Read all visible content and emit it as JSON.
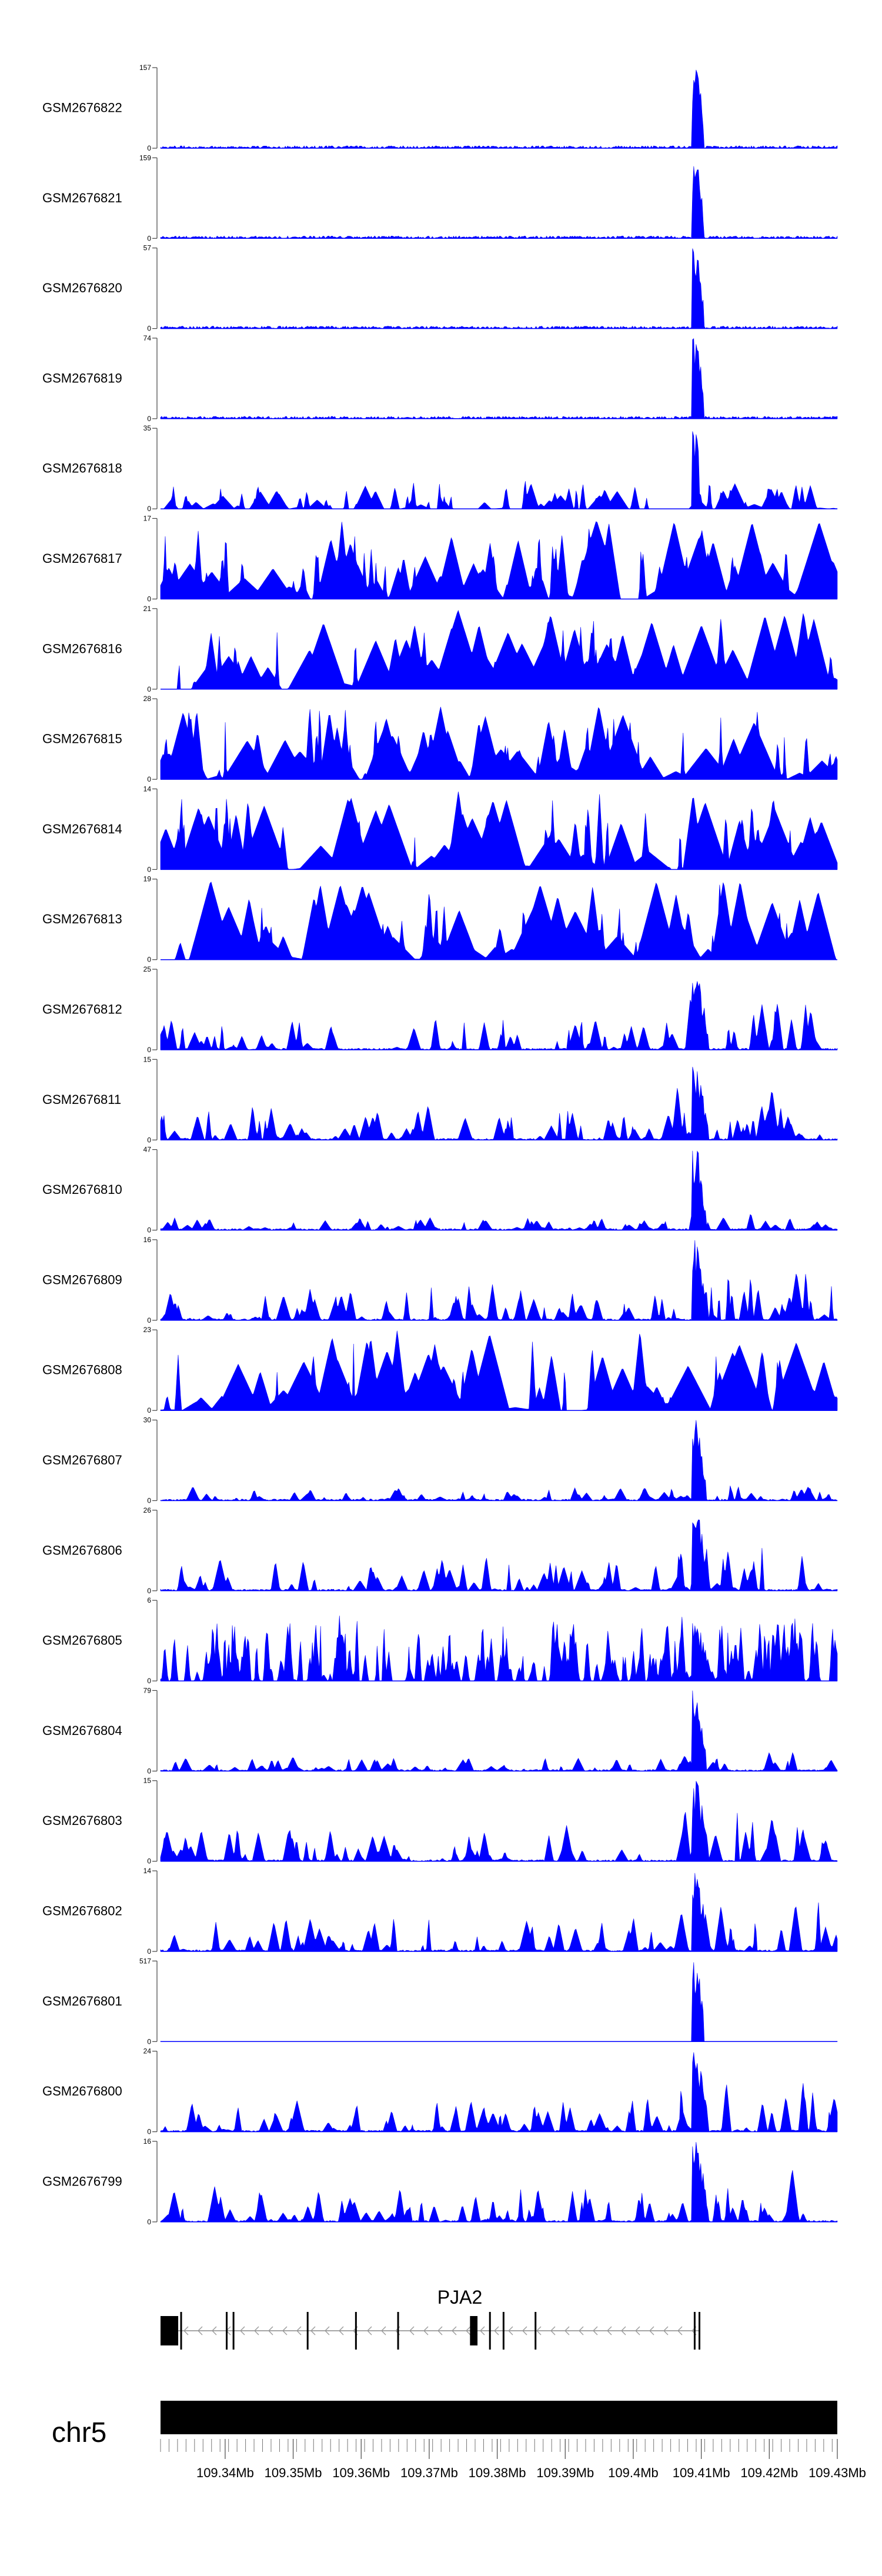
{
  "chart_data": {
    "type": "area",
    "title": "",
    "color": "#0000ff",
    "genome": {
      "chromosome": "chr5",
      "xlim": [
        109.3305,
        109.43
      ],
      "x_ticks": [
        {
          "value": 109.34,
          "label": "109.34Mb"
        },
        {
          "value": 109.35,
          "label": "109.35Mb"
        },
        {
          "value": 109.36,
          "label": "109.36Mb"
        },
        {
          "value": 109.37,
          "label": "109.37Mb"
        },
        {
          "value": 109.38,
          "label": "109.38Mb"
        },
        {
          "value": 109.39,
          "label": "109.39Mb"
        },
        {
          "value": 109.4,
          "label": "109.4Mb"
        },
        {
          "value": 109.41,
          "label": "109.41Mb"
        },
        {
          "value": 109.42,
          "label": "109.42Mb"
        },
        {
          "value": 109.43,
          "label": "109.43Mb"
        }
      ],
      "peak_position": 109.4092
    },
    "tracks": [
      {
        "name": "GSM2676822",
        "ymin": "0",
        "ymax": "157",
        "profile": "peak",
        "peak_height": 1.0
      },
      {
        "name": "GSM2676821",
        "ymin": "0",
        "ymax": "159",
        "profile": "peak",
        "peak_height": 1.0
      },
      {
        "name": "GSM2676820",
        "ymin": "0",
        "ymax": "57",
        "profile": "peak",
        "peak_height": 1.0
      },
      {
        "name": "GSM2676819",
        "ymin": "0",
        "ymax": "74",
        "profile": "peak",
        "peak_height": 1.0
      },
      {
        "name": "GSM2676818",
        "ymin": "0",
        "ymax": "35",
        "profile": "sparse_peak",
        "peak_height": 1.0
      },
      {
        "name": "GSM2676817",
        "ymin": "0",
        "ymax": "17",
        "profile": "sparse",
        "peak_height": 0.4
      },
      {
        "name": "GSM2676816",
        "ymin": "0",
        "ymax": "21",
        "profile": "sparse",
        "peak_height": 0.4
      },
      {
        "name": "GSM2676815",
        "ymin": "0",
        "ymax": "28",
        "profile": "sparse",
        "peak_height": 0.4
      },
      {
        "name": "GSM2676814",
        "ymin": "0",
        "ymax": "14",
        "profile": "sparse",
        "peak_height": 0.4
      },
      {
        "name": "GSM2676813",
        "ymin": "0",
        "ymax": "19",
        "profile": "sparse",
        "peak_height": 0.4
      },
      {
        "name": "GSM2676812",
        "ymin": "0",
        "ymax": "25",
        "profile": "medium",
        "peak_height": 1.0
      },
      {
        "name": "GSM2676811",
        "ymin": "0",
        "ymax": "15",
        "profile": "medium",
        "peak_height": 1.0
      },
      {
        "name": "GSM2676810",
        "ymin": "0",
        "ymax": "47",
        "profile": "low_peak",
        "peak_height": 1.0
      },
      {
        "name": "GSM2676809",
        "ymin": "0",
        "ymax": "16",
        "profile": "medium",
        "peak_height": 1.0
      },
      {
        "name": "GSM2676808",
        "ymin": "0",
        "ymax": "23",
        "profile": "sparse",
        "peak_height": 0.5
      },
      {
        "name": "GSM2676807",
        "ymin": "0",
        "ymax": "30",
        "profile": "low_peak",
        "peak_height": 1.0
      },
      {
        "name": "GSM2676806",
        "ymin": "0",
        "ymax": "26",
        "profile": "medium",
        "peak_height": 1.0
      },
      {
        "name": "GSM2676805",
        "ymin": "0",
        "ymax": "6",
        "profile": "noisy",
        "peak_height": 0.85
      },
      {
        "name": "GSM2676804",
        "ymin": "0",
        "ymax": "79",
        "profile": "low_peak",
        "peak_height": 1.0
      },
      {
        "name": "GSM2676803",
        "ymin": "0",
        "ymax": "15",
        "profile": "medium",
        "peak_height": 1.0
      },
      {
        "name": "GSM2676802",
        "ymin": "0",
        "ymax": "14",
        "profile": "medium",
        "peak_height": 1.0
      },
      {
        "name": "GSM2676801",
        "ymin": "0",
        "ymax": "517",
        "profile": "flat_peak",
        "peak_height": 1.0
      },
      {
        "name": "GSM2676800",
        "ymin": "0",
        "ymax": "24",
        "profile": "medium",
        "peak_height": 1.0
      },
      {
        "name": "GSM2676799",
        "ymin": "0",
        "ymax": "16",
        "profile": "medium",
        "peak_height": 1.0
      }
    ],
    "gene": {
      "name": "PJA2",
      "strand": "-",
      "start": 109.3305,
      "end": 109.4097,
      "exons": [
        {
          "start": 109.3305,
          "end": 109.3331
        },
        {
          "start": 109.3334,
          "end": 109.3336
        },
        {
          "start": 109.3401,
          "end": 109.3403
        },
        {
          "start": 109.3411,
          "end": 109.3413
        },
        {
          "start": 109.352,
          "end": 109.3522
        },
        {
          "start": 109.3591,
          "end": 109.3593
        },
        {
          "start": 109.3653,
          "end": 109.3655
        },
        {
          "start": 109.376,
          "end": 109.3771
        },
        {
          "start": 109.3788,
          "end": 109.379
        },
        {
          "start": 109.3808,
          "end": 109.381
        },
        {
          "start": 109.3855,
          "end": 109.3857
        },
        {
          "start": 109.4089,
          "end": 109.4091
        },
        {
          "start": 109.4096,
          "end": 109.4098
        }
      ]
    }
  }
}
